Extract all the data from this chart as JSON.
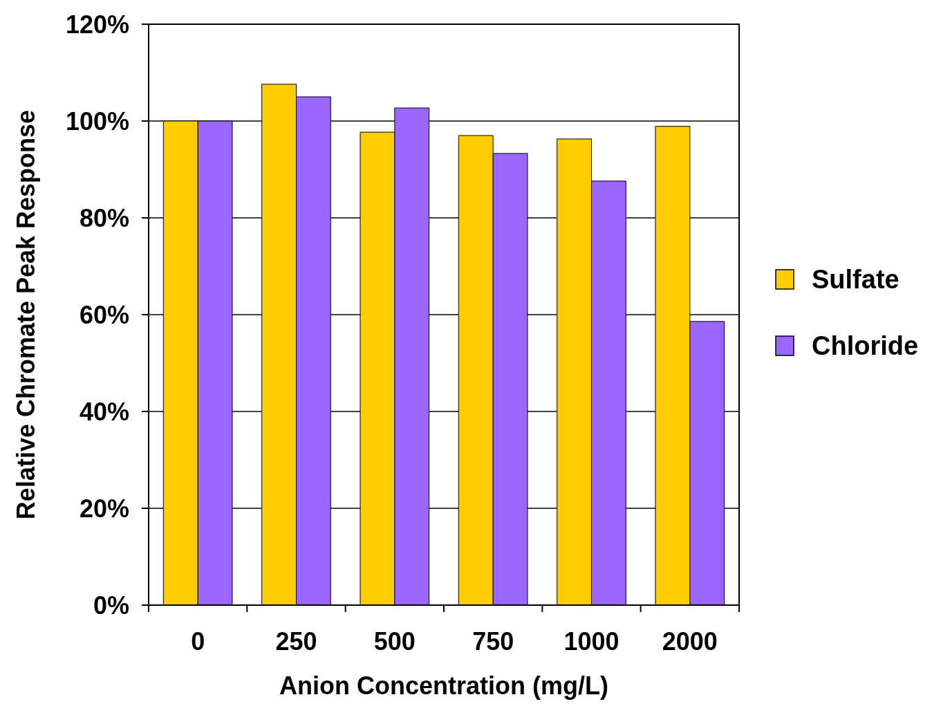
{
  "chart_data": {
    "type": "bar",
    "xlabel": "Anion Concentration (mg/L)",
    "ylabel": "Relative Chromate Peak Response",
    "categories": [
      "0",
      "250",
      "500",
      "750",
      "1000",
      "2000"
    ],
    "series": [
      {
        "name": "Sulfate",
        "color": "#ffcc00",
        "values": [
          100,
          107.6,
          97.7,
          97.0,
          96.3,
          98.9
        ]
      },
      {
        "name": "Chloride",
        "color": "#9966ff",
        "values": [
          100,
          105.0,
          102.7,
          93.3,
          87.6,
          58.6
        ]
      }
    ],
    "ylim": [
      0,
      120
    ],
    "yticks": [
      {
        "value": 0,
        "label": "0%"
      },
      {
        "value": 20,
        "label": "20%"
      },
      {
        "value": 40,
        "label": "40%"
      },
      {
        "value": 60,
        "label": "60%"
      },
      {
        "value": 80,
        "label": "80%"
      },
      {
        "value": 100,
        "label": "100%"
      },
      {
        "value": 120,
        "label": "120%"
      }
    ],
    "grid": "y",
    "legend": "right"
  }
}
